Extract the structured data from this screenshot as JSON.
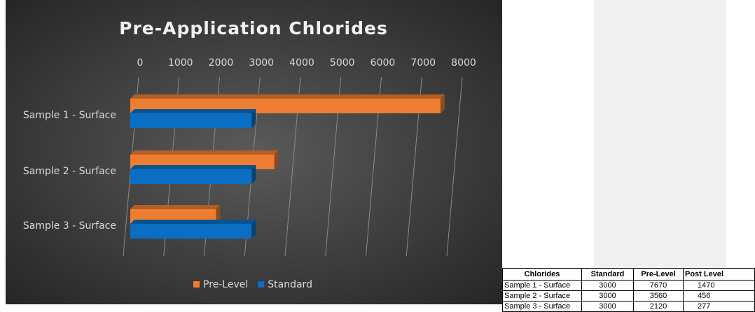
{
  "chart_data": {
    "type": "bar",
    "orientation": "horizontal",
    "title": "Pre-Application Chlorides",
    "categories": [
      "Sample 1 - Surface",
      "Sample 2 - Surface",
      "Sample 3 - Surface"
    ],
    "series": [
      {
        "name": "Pre-Level",
        "color": "#ed7d31",
        "values": [
          7670,
          3560,
          2120
        ]
      },
      {
        "name": "Standard",
        "color": "#0a6fc2",
        "values": [
          3000,
          3000,
          3000
        ]
      }
    ],
    "xlim": [
      0,
      8000
    ],
    "xticks": [
      0,
      1000,
      2000,
      3000,
      4000,
      5000,
      6000,
      7000,
      8000
    ],
    "grid": true,
    "legend": "bottom"
  },
  "table": {
    "header": [
      "Chlorides",
      "Standard",
      "Pre-Level",
      "Post Level"
    ],
    "rows": [
      [
        "Sample 1 - Surface",
        "3000",
        "7670",
        "1470"
      ],
      [
        "Sample 2 - Surface",
        "3000",
        "3560",
        "456"
      ],
      [
        "Sample 3 - Surface",
        "3000",
        "2120",
        "277"
      ]
    ]
  }
}
